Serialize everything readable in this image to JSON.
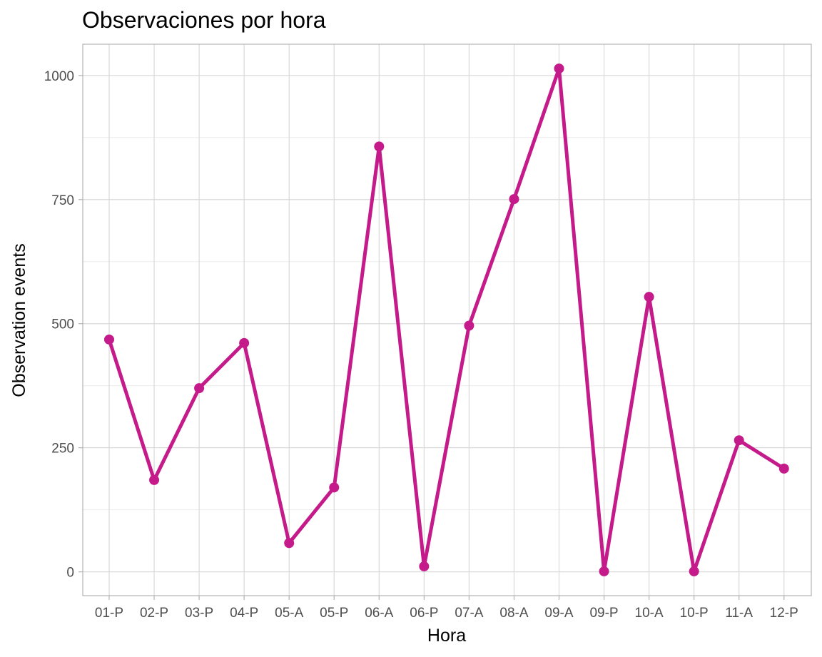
{
  "chart_data": {
    "type": "line",
    "title": "Observaciones por hora",
    "xlabel": "Hora",
    "ylabel": "Observation events",
    "categories": [
      "01-P",
      "02-P",
      "03-P",
      "04-P",
      "05-A",
      "05-P",
      "06-A",
      "06-P",
      "07-A",
      "08-A",
      "09-A",
      "09-P",
      "10-A",
      "10-P",
      "11-A",
      "12-P"
    ],
    "series": [
      {
        "values": [
          468,
          185,
          370,
          461,
          58,
          170,
          857,
          11,
          496,
          751,
          1014,
          1,
          554,
          1,
          265,
          208
        ]
      }
    ],
    "yticks": [
      0,
      250,
      500,
      750,
      1000
    ],
    "ylim": [
      -48,
      1063
    ],
    "grid": true,
    "legend": "none",
    "colors": {
      "line": "#c51b8a",
      "grid_major": "#d9d9d9",
      "grid_minor": "#ebebeb",
      "panel_border": "#b3b3b3",
      "tick_text": "#4d4d4d"
    }
  }
}
